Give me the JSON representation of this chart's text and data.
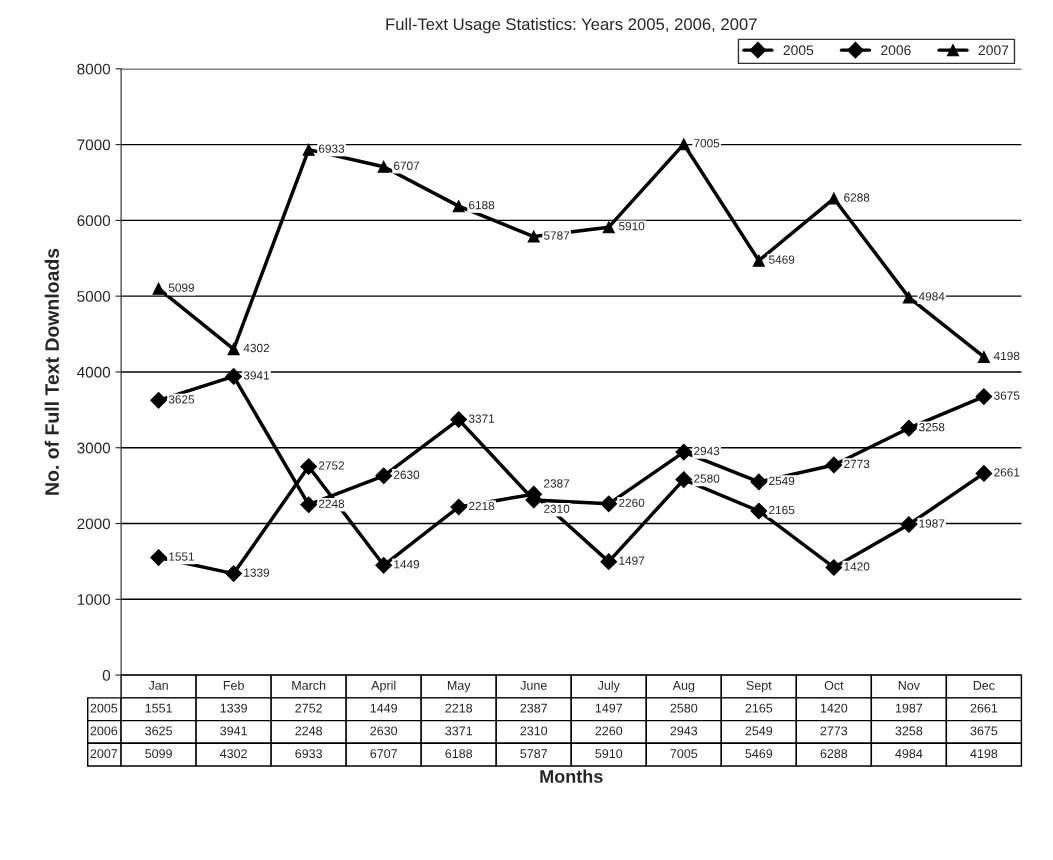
{
  "chart_data": {
    "type": "line",
    "title": "Full-Text Usage Statistics: Years 2005, 2006, 2007",
    "xlabel": "Months",
    "ylabel": "No. of Full Text Downloads",
    "categories": [
      "Jan",
      "Feb",
      "March",
      "April",
      "May",
      "June",
      "July",
      "Aug",
      "Sept",
      "Oct",
      "Nov",
      "Dec"
    ],
    "series": [
      {
        "name": "2005",
        "color": "#000000",
        "marker": "diamond",
        "values": [
          1551,
          1339,
          2752,
          1449,
          2218,
          2387,
          1497,
          2580,
          2165,
          1420,
          1987,
          2661
        ]
      },
      {
        "name": "2006",
        "color": "#000000",
        "marker": "diamond",
        "values": [
          3625,
          3941,
          2248,
          2630,
          3371,
          2310,
          2260,
          2943,
          2549,
          2773,
          3258,
          3675
        ]
      },
      {
        "name": "2007",
        "color": "#000000",
        "marker": "triangle",
        "values": [
          5099,
          4302,
          6933,
          6707,
          6188,
          5787,
          5910,
          7005,
          5469,
          6288,
          4984,
          4198
        ]
      }
    ],
    "annotations": [
      {
        "text": "1551",
        "x": "Jan",
        "y": 1551
      },
      {
        "text": "1339",
        "x": "Feb",
        "y": 1339
      },
      {
        "text": "2752",
        "x": "March",
        "y": 2752
      },
      {
        "text": "1449",
        "x": "April",
        "y": 1449
      },
      {
        "text": "2218",
        "x": "May",
        "y": 2218
      },
      {
        "text": "2387",
        "x": "June",
        "y": 2387
      },
      {
        "text": "1497",
        "x": "July",
        "y": 1497
      },
      {
        "text": "2580",
        "x": "Aug",
        "y": 2580
      },
      {
        "text": "2165",
        "x": "Sept",
        "y": 2165
      },
      {
        "text": "1420",
        "x": "Oct",
        "y": 1420
      },
      {
        "text": "1987",
        "x": "Nov",
        "y": 1987
      },
      {
        "text": "2661",
        "x": "Dec",
        "y": 2661
      },
      {
        "text": "3625",
        "x": "Jan",
        "y": 3625
      },
      {
        "text": "3941",
        "x": "Feb",
        "y": 3941
      },
      {
        "text": "2248",
        "x": "March",
        "y": 2248
      },
      {
        "text": "2630",
        "x": "April",
        "y": 2630
      },
      {
        "text": "3371",
        "x": "May",
        "y": 3371
      },
      {
        "text": "2310",
        "x": "June",
        "y": 2310
      },
      {
        "text": "2260",
        "x": "July",
        "y": 2260
      },
      {
        "text": "2943",
        "x": "Aug",
        "y": 2943
      },
      {
        "text": "2549",
        "x": "Sept",
        "y": 2549
      },
      {
        "text": "2773",
        "x": "Oct",
        "y": 2773
      },
      {
        "text": "3258",
        "x": "Nov",
        "y": 3258
      },
      {
        "text": "3675",
        "x": "Dec",
        "y": 3675
      },
      {
        "text": "5099",
        "x": "Jan",
        "y": 5099
      },
      {
        "text": "4302",
        "x": "Feb",
        "y": 4302
      },
      {
        "text": "6933",
        "x": "March",
        "y": 6933
      },
      {
        "text": "6707",
        "x": "April",
        "y": 6707
      },
      {
        "text": "6188",
        "x": "May",
        "y": 6188
      },
      {
        "text": "5787",
        "x": "June",
        "y": 5787
      },
      {
        "text": "5910",
        "x": "July",
        "y": 5910
      },
      {
        "text": "7005",
        "x": "Aug",
        "y": 7005
      },
      {
        "text": "5469",
        "x": "Sept",
        "y": 5469
      },
      {
        "text": "6288",
        "x": "Oct",
        "y": 6288
      },
      {
        "text": "4984",
        "x": "Nov",
        "y": 4984
      },
      {
        "text": "4198",
        "x": "Dec",
        "y": 4198
      }
    ],
    "ylim": [
      0,
      8000
    ],
    "yticks": [
      0,
      1000,
      2000,
      3000,
      4000,
      5000,
      6000,
      7000,
      8000
    ],
    "grid": "y",
    "legend": "top right",
    "data_labels": true,
    "tick_labels": "y",
    "line_style": "solid"
  }
}
